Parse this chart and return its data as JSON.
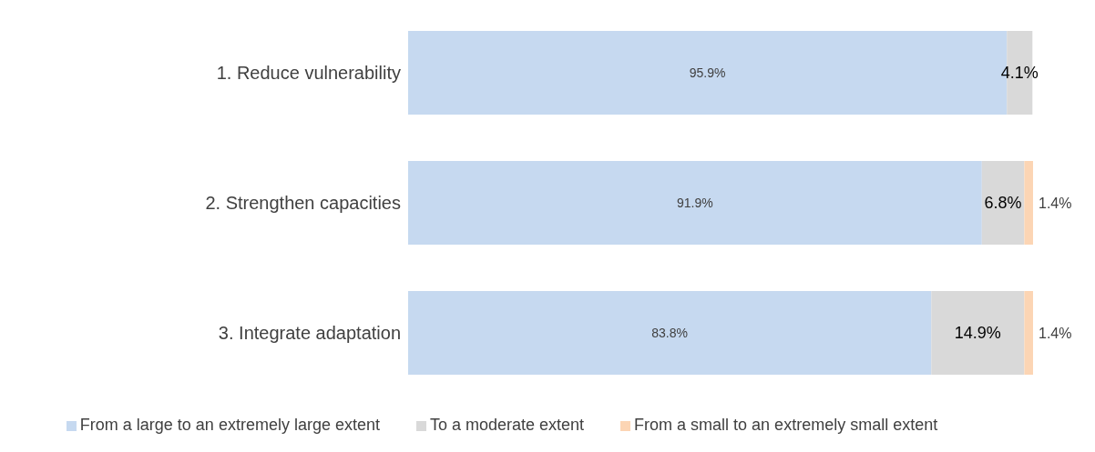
{
  "chart_data": {
    "type": "bar",
    "orientation": "horizontal",
    "stacked": true,
    "legend": "bottom",
    "grid": false,
    "categories": [
      "1. Reduce vulnerability",
      "2. Strengthen capacities",
      "3. Integrate adaptation"
    ],
    "series": [
      {
        "name": "From a large to an extremely large extent",
        "color": "#c6d9f0",
        "values": [
          95.9,
          91.9,
          83.8
        ],
        "value_labels": [
          "95.9%",
          "91.9%",
          "83.8%"
        ]
      },
      {
        "name": "To a moderate extent",
        "color": "#d9d9d9",
        "values": [
          4.1,
          6.8,
          14.9
        ],
        "value_labels": [
          "4.1%",
          "6.8%",
          "14.9%"
        ]
      },
      {
        "name": "From a small to an extremely small extent",
        "color": "#fcd5b4",
        "values": [
          null,
          1.4,
          1.4
        ],
        "value_labels": [
          null,
          "1.4%",
          "1.4%"
        ]
      }
    ]
  }
}
